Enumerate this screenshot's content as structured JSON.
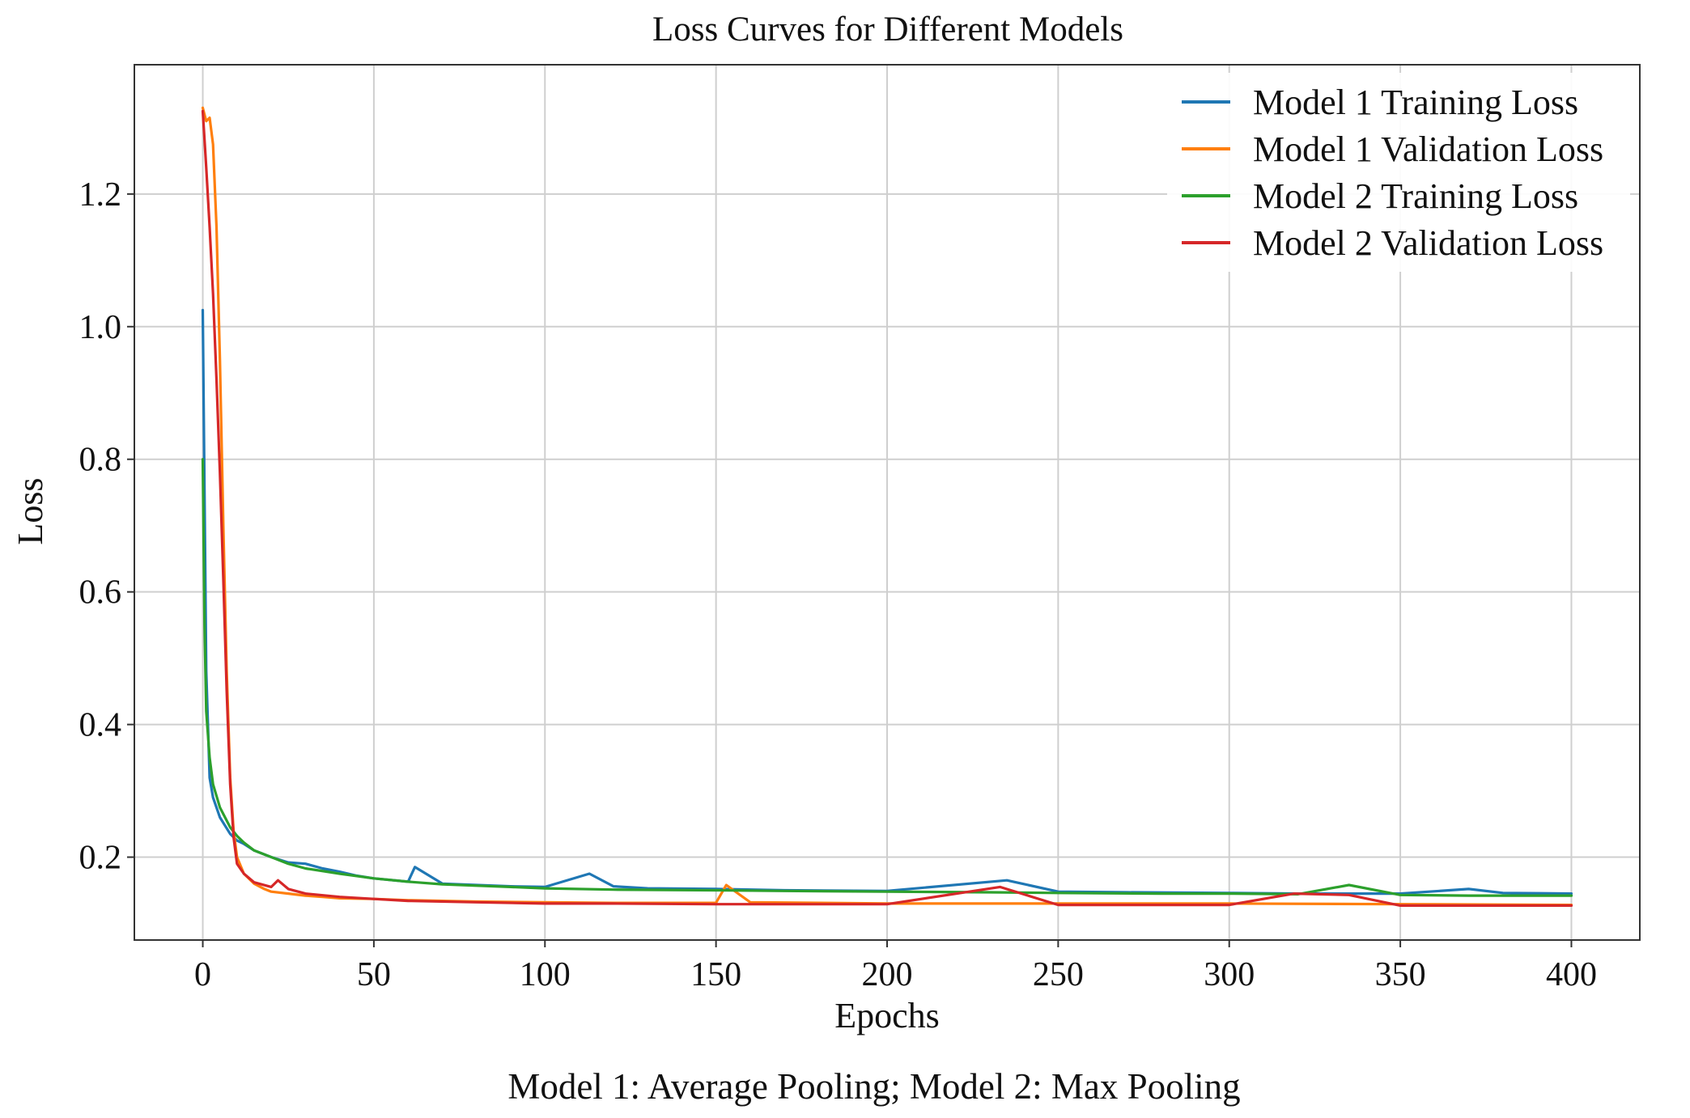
{
  "chart_data": {
    "type": "line",
    "title": "Loss Curves for Different Models",
    "xlabel": "Epochs",
    "ylabel": "Loss",
    "caption": "Model 1: Average Pooling; Model 2: Max Pooling",
    "xlim": [
      -20,
      420
    ],
    "ylim": [
      0.075,
      1.395
    ],
    "xticks": [
      0,
      50,
      100,
      150,
      200,
      250,
      300,
      350,
      400
    ],
    "yticks": [
      0.2,
      0.4,
      0.6,
      0.8,
      1.0,
      1.2
    ],
    "xtick_labels": [
      "0",
      "50",
      "100",
      "150",
      "200",
      "250",
      "300",
      "350",
      "400"
    ],
    "ytick_labels": [
      "0.2",
      "0.4",
      "0.6",
      "0.8",
      "1.0",
      "1.2"
    ],
    "grid": true,
    "legend_position": "top-right",
    "series": [
      {
        "name": "Model 1 Training Loss",
        "color": "#1f77b4",
        "x": [
          0,
          1,
          2,
          3,
          5,
          8,
          10,
          12,
          15,
          20,
          25,
          30,
          35,
          40,
          45,
          50,
          60,
          62,
          70,
          80,
          90,
          100,
          113,
          120,
          130,
          150,
          170,
          200,
          235,
          250,
          270,
          300,
          320,
          350,
          370,
          380,
          400
        ],
        "y": [
          1.025,
          0.48,
          0.32,
          0.29,
          0.26,
          0.235,
          0.225,
          0.22,
          0.21,
          0.2,
          0.192,
          0.19,
          0.183,
          0.178,
          0.172,
          0.168,
          0.163,
          0.185,
          0.16,
          0.158,
          0.156,
          0.155,
          0.175,
          0.156,
          0.153,
          0.152,
          0.15,
          0.149,
          0.165,
          0.148,
          0.147,
          0.146,
          0.145,
          0.145,
          0.152,
          0.146,
          0.145
        ]
      },
      {
        "name": "Model 1 Validation Loss",
        "color": "#ff7f0e",
        "x": [
          0,
          1,
          2,
          3,
          4,
          5,
          6,
          7,
          8,
          9,
          10,
          12,
          15,
          18,
          20,
          25,
          30,
          35,
          40,
          50,
          60,
          70,
          80,
          100,
          120,
          150,
          153,
          160,
          200,
          250,
          300,
          350,
          400
        ],
        "y": [
          1.33,
          1.31,
          1.315,
          1.275,
          1.15,
          0.95,
          0.7,
          0.48,
          0.32,
          0.24,
          0.2,
          0.175,
          0.16,
          0.152,
          0.148,
          0.145,
          0.142,
          0.14,
          0.138,
          0.137,
          0.135,
          0.134,
          0.133,
          0.132,
          0.131,
          0.131,
          0.158,
          0.132,
          0.13,
          0.13,
          0.13,
          0.129,
          0.128
        ]
      },
      {
        "name": "Model 2 Training Loss",
        "color": "#2ca02c",
        "x": [
          0,
          0.5,
          1,
          2,
          3,
          5,
          8,
          10,
          12,
          15,
          20,
          25,
          30,
          40,
          50,
          60,
          70,
          80,
          90,
          100,
          120,
          150,
          170,
          200,
          230,
          250,
          280,
          300,
          320,
          335,
          350,
          370,
          400
        ],
        "y": [
          0.8,
          0.55,
          0.42,
          0.35,
          0.31,
          0.275,
          0.245,
          0.232,
          0.222,
          0.21,
          0.2,
          0.19,
          0.183,
          0.175,
          0.168,
          0.163,
          0.159,
          0.157,
          0.155,
          0.153,
          0.151,
          0.15,
          0.149,
          0.148,
          0.147,
          0.146,
          0.145,
          0.145,
          0.144,
          0.158,
          0.143,
          0.142,
          0.142
        ]
      },
      {
        "name": "Model 2 Validation Loss",
        "color": "#d62728",
        "x": [
          0,
          1,
          2,
          3,
          4,
          5,
          6,
          7,
          8,
          9,
          10,
          12,
          15,
          20,
          22,
          25,
          30,
          40,
          50,
          60,
          80,
          100,
          120,
          150,
          200,
          233,
          250,
          300,
          319,
          335,
          350,
          400
        ],
        "y": [
          1.325,
          1.24,
          1.15,
          1.05,
          0.92,
          0.78,
          0.62,
          0.45,
          0.31,
          0.23,
          0.19,
          0.175,
          0.162,
          0.155,
          0.165,
          0.152,
          0.145,
          0.14,
          0.137,
          0.134,
          0.132,
          0.13,
          0.13,
          0.129,
          0.129,
          0.155,
          0.128,
          0.128,
          0.145,
          0.143,
          0.127,
          0.127
        ]
      }
    ]
  }
}
